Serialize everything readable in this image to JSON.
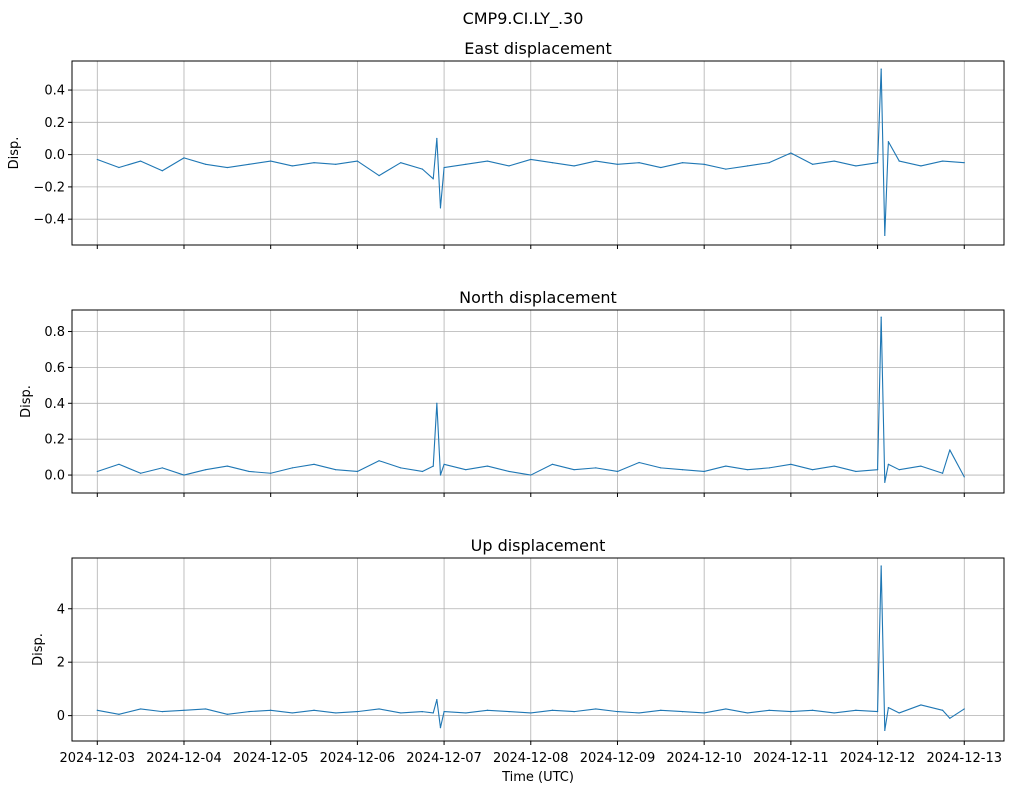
{
  "figure": {
    "suptitle": "CMP9.CI.LY_.30"
  },
  "chart_data": [
    {
      "type": "line",
      "title": "East displacement",
      "xlabel": "",
      "ylabel": "Disp.",
      "xlim": [
        "2024-12-02T17:00",
        "2024-12-13T11:00"
      ],
      "ylim": [
        -0.56,
        0.58
      ],
      "yticks": [
        -0.4,
        -0.2,
        0.0,
        0.2,
        0.4
      ],
      "ytick_labels": [
        "−0.4",
        "−0.2",
        "0.0",
        "0.2",
        "0.4"
      ],
      "grid": true,
      "color": "#1f77b4",
      "x": [
        "2024-12-03T00:00",
        "2024-12-03T06:00",
        "2024-12-03T12:00",
        "2024-12-03T18:00",
        "2024-12-04T00:00",
        "2024-12-04T06:00",
        "2024-12-04T12:00",
        "2024-12-04T18:00",
        "2024-12-05T00:00",
        "2024-12-05T06:00",
        "2024-12-05T12:00",
        "2024-12-05T18:00",
        "2024-12-06T00:00",
        "2024-12-06T06:00",
        "2024-12-06T12:00",
        "2024-12-06T18:00",
        "2024-12-06T21:00",
        "2024-12-06T22:00",
        "2024-12-06T23:00",
        "2024-12-07T00:00",
        "2024-12-07T06:00",
        "2024-12-07T12:00",
        "2024-12-07T18:00",
        "2024-12-08T00:00",
        "2024-12-08T06:00",
        "2024-12-08T12:00",
        "2024-12-08T18:00",
        "2024-12-09T00:00",
        "2024-12-09T06:00",
        "2024-12-09T12:00",
        "2024-12-09T18:00",
        "2024-12-10T00:00",
        "2024-12-10T06:00",
        "2024-12-10T12:00",
        "2024-12-10T18:00",
        "2024-12-11T00:00",
        "2024-12-11T06:00",
        "2024-12-11T12:00",
        "2024-12-11T18:00",
        "2024-12-12T00:00",
        "2024-12-12T01:00",
        "2024-12-12T02:00",
        "2024-12-12T03:00",
        "2024-12-12T06:00",
        "2024-12-12T12:00",
        "2024-12-12T18:00",
        "2024-12-13T00:00"
      ],
      "y": [
        -0.03,
        -0.08,
        -0.04,
        -0.1,
        -0.02,
        -0.06,
        -0.08,
        -0.06,
        -0.04,
        -0.07,
        -0.05,
        -0.06,
        -0.04,
        -0.13,
        -0.05,
        -0.09,
        -0.15,
        0.1,
        -0.33,
        -0.08,
        -0.06,
        -0.04,
        -0.07,
        -0.03,
        -0.05,
        -0.07,
        -0.04,
        -0.06,
        -0.05,
        -0.08,
        -0.05,
        -0.06,
        -0.09,
        -0.07,
        -0.05,
        0.01,
        -0.06,
        -0.04,
        -0.07,
        -0.05,
        0.53,
        -0.5,
        0.08,
        -0.04,
        -0.07,
        -0.04,
        -0.05
      ]
    },
    {
      "type": "line",
      "title": "North displacement",
      "xlabel": "",
      "ylabel": "Disp.",
      "xlim": [
        "2024-12-02T17:00",
        "2024-12-13T11:00"
      ],
      "ylim": [
        -0.1,
        0.92
      ],
      "yticks": [
        0.0,
        0.2,
        0.4,
        0.6,
        0.8
      ],
      "ytick_labels": [
        "0.0",
        "0.2",
        "0.4",
        "0.6",
        "0.8"
      ],
      "grid": true,
      "color": "#1f77b4",
      "x": [
        "2024-12-03T00:00",
        "2024-12-03T06:00",
        "2024-12-03T12:00",
        "2024-12-03T18:00",
        "2024-12-04T00:00",
        "2024-12-04T06:00",
        "2024-12-04T12:00",
        "2024-12-04T18:00",
        "2024-12-05T00:00",
        "2024-12-05T06:00",
        "2024-12-05T12:00",
        "2024-12-05T18:00",
        "2024-12-06T00:00",
        "2024-12-06T06:00",
        "2024-12-06T12:00",
        "2024-12-06T18:00",
        "2024-12-06T21:00",
        "2024-12-06T22:00",
        "2024-12-06T23:00",
        "2024-12-07T00:00",
        "2024-12-07T06:00",
        "2024-12-07T12:00",
        "2024-12-07T18:00",
        "2024-12-08T00:00",
        "2024-12-08T06:00",
        "2024-12-08T12:00",
        "2024-12-08T18:00",
        "2024-12-09T00:00",
        "2024-12-09T06:00",
        "2024-12-09T12:00",
        "2024-12-09T18:00",
        "2024-12-10T00:00",
        "2024-12-10T06:00",
        "2024-12-10T12:00",
        "2024-12-10T18:00",
        "2024-12-11T00:00",
        "2024-12-11T06:00",
        "2024-12-11T12:00",
        "2024-12-11T18:00",
        "2024-12-12T00:00",
        "2024-12-12T01:00",
        "2024-12-12T02:00",
        "2024-12-12T03:00",
        "2024-12-12T06:00",
        "2024-12-12T12:00",
        "2024-12-12T18:00",
        "2024-12-12T20:00",
        "2024-12-13T00:00"
      ],
      "y": [
        0.02,
        0.06,
        0.01,
        0.04,
        0.0,
        0.03,
        0.05,
        0.02,
        0.01,
        0.04,
        0.06,
        0.03,
        0.02,
        0.08,
        0.04,
        0.02,
        0.05,
        0.4,
        0.0,
        0.06,
        0.03,
        0.05,
        0.02,
        0.0,
        0.06,
        0.03,
        0.04,
        0.02,
        0.07,
        0.04,
        0.03,
        0.02,
        0.05,
        0.03,
        0.04,
        0.06,
        0.03,
        0.05,
        0.02,
        0.03,
        0.88,
        -0.04,
        0.06,
        0.03,
        0.05,
        0.01,
        0.14,
        -0.01
      ]
    },
    {
      "type": "line",
      "title": "Up displacement",
      "xlabel": "Time (UTC)",
      "ylabel": "Disp.",
      "xlim": [
        "2024-12-02T17:00",
        "2024-12-13T11:00"
      ],
      "ylim": [
        -0.95,
        5.9
      ],
      "yticks": [
        0,
        2,
        4
      ],
      "ytick_labels": [
        "0",
        "2",
        "4"
      ],
      "xticks": [
        "2024-12-03",
        "2024-12-04",
        "2024-12-05",
        "2024-12-06",
        "2024-12-07",
        "2024-12-08",
        "2024-12-09",
        "2024-12-10",
        "2024-12-11",
        "2024-12-12",
        "2024-12-13"
      ],
      "xtick_labels": [
        "2024-12-03",
        "2024-12-04",
        "2024-12-05",
        "2024-12-06",
        "2024-12-07",
        "2024-12-08",
        "2024-12-09",
        "2024-12-10",
        "2024-12-11",
        "2024-12-12",
        "2024-12-13"
      ],
      "grid": true,
      "color": "#1f77b4",
      "x": [
        "2024-12-03T00:00",
        "2024-12-03T06:00",
        "2024-12-03T12:00",
        "2024-12-03T18:00",
        "2024-12-04T00:00",
        "2024-12-04T06:00",
        "2024-12-04T12:00",
        "2024-12-04T18:00",
        "2024-12-05T00:00",
        "2024-12-05T06:00",
        "2024-12-05T12:00",
        "2024-12-05T18:00",
        "2024-12-06T00:00",
        "2024-12-06T06:00",
        "2024-12-06T12:00",
        "2024-12-06T18:00",
        "2024-12-06T21:00",
        "2024-12-06T22:00",
        "2024-12-06T23:00",
        "2024-12-07T00:00",
        "2024-12-07T06:00",
        "2024-12-07T12:00",
        "2024-12-07T18:00",
        "2024-12-08T00:00",
        "2024-12-08T06:00",
        "2024-12-08T12:00",
        "2024-12-08T18:00",
        "2024-12-09T00:00",
        "2024-12-09T06:00",
        "2024-12-09T12:00",
        "2024-12-09T18:00",
        "2024-12-10T00:00",
        "2024-12-10T06:00",
        "2024-12-10T12:00",
        "2024-12-10T18:00",
        "2024-12-11T00:00",
        "2024-12-11T06:00",
        "2024-12-11T12:00",
        "2024-12-11T18:00",
        "2024-12-12T00:00",
        "2024-12-12T01:00",
        "2024-12-12T02:00",
        "2024-12-12T03:00",
        "2024-12-12T06:00",
        "2024-12-12T12:00",
        "2024-12-12T18:00",
        "2024-12-12T20:00",
        "2024-12-13T00:00"
      ],
      "y": [
        0.2,
        0.05,
        0.25,
        0.15,
        0.2,
        0.25,
        0.05,
        0.15,
        0.2,
        0.1,
        0.2,
        0.1,
        0.15,
        0.25,
        0.1,
        0.15,
        0.1,
        0.6,
        -0.45,
        0.15,
        0.1,
        0.2,
        0.15,
        0.1,
        0.2,
        0.15,
        0.25,
        0.15,
        0.1,
        0.2,
        0.15,
        0.1,
        0.25,
        0.1,
        0.2,
        0.15,
        0.2,
        0.1,
        0.2,
        0.15,
        5.6,
        -0.55,
        0.3,
        0.1,
        0.4,
        0.2,
        -0.1,
        0.25
      ]
    }
  ]
}
